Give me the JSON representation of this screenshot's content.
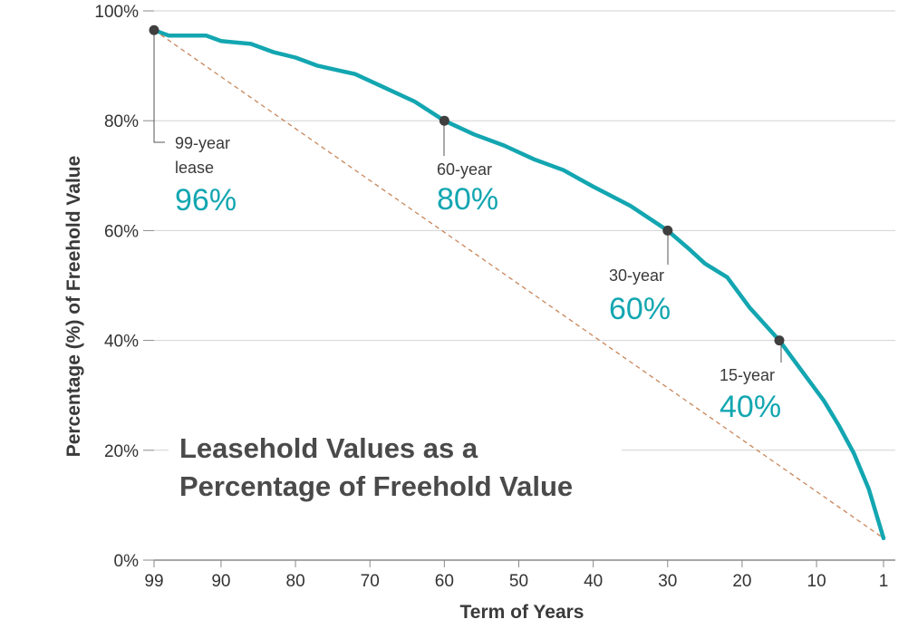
{
  "chart_data": {
    "type": "line",
    "title": [
      "Leasehold Values as a",
      "Percentage of Freehold Value"
    ],
    "xlabel": "Term of Years",
    "ylabel": "Percentage (%) of Freehold Value",
    "x_reversed": true,
    "xlim": [
      99,
      1
    ],
    "ylim": [
      0,
      100
    ],
    "x_ticks": [
      {
        "value": 99,
        "label": "99"
      },
      {
        "value": 90,
        "label": "90"
      },
      {
        "value": 80,
        "label": "80"
      },
      {
        "value": 70,
        "label": "70"
      },
      {
        "value": 60,
        "label": "60"
      },
      {
        "value": 50,
        "label": "50"
      },
      {
        "value": 40,
        "label": "40"
      },
      {
        "value": 30,
        "label": "30"
      },
      {
        "value": 20,
        "label": "20"
      },
      {
        "value": 10,
        "label": "10"
      },
      {
        "value": 1,
        "label": "1"
      }
    ],
    "y_ticks": [
      {
        "value": 0,
        "label": "0%"
      },
      {
        "value": 20,
        "label": "20%"
      },
      {
        "value": 40,
        "label": "40%"
      },
      {
        "value": 60,
        "label": "60%"
      },
      {
        "value": 80,
        "label": "80%"
      },
      {
        "value": 100,
        "label": "100%"
      }
    ],
    "grid": "horizontal",
    "colors": {
      "curve": "#13a6b1",
      "reference": "#c8865a",
      "marker": "#3f3f3f",
      "grid": "#d2d2d2",
      "axis": "#8a8a8a"
    },
    "series": [
      {
        "style": "solid",
        "x": [
          99,
          97,
          92,
          90,
          86,
          83,
          80,
          77,
          72,
          68,
          64,
          60,
          56,
          52,
          48,
          44,
          40,
          35,
          30,
          27,
          25,
          22,
          19,
          15,
          12,
          9,
          7,
          5,
          3,
          1
        ],
        "y": [
          96.5,
          95.5,
          95.5,
          94.5,
          94,
          92.5,
          91.5,
          90,
          88.5,
          86,
          83.5,
          80,
          77.5,
          75.5,
          73,
          71,
          68,
          64.5,
          60,
          56.5,
          54,
          51.5,
          46,
          40,
          34.5,
          29,
          24.5,
          19.5,
          13,
          4
        ]
      },
      {
        "style": "dashed",
        "x": [
          99,
          1
        ],
        "y": [
          96.5,
          4
        ]
      }
    ],
    "annotations": [
      {
        "term": 99,
        "value": 96.5,
        "label": [
          "99-year",
          "lease"
        ],
        "value_label": "96%"
      },
      {
        "term": 60,
        "value": 80,
        "label": [
          "60-year"
        ],
        "value_label": "80%"
      },
      {
        "term": 30,
        "value": 60,
        "label": [
          "30-year"
        ],
        "value_label": "60%"
      },
      {
        "term": 15,
        "value": 40,
        "label": [
          "15-year"
        ],
        "value_label": "40%"
      }
    ]
  }
}
